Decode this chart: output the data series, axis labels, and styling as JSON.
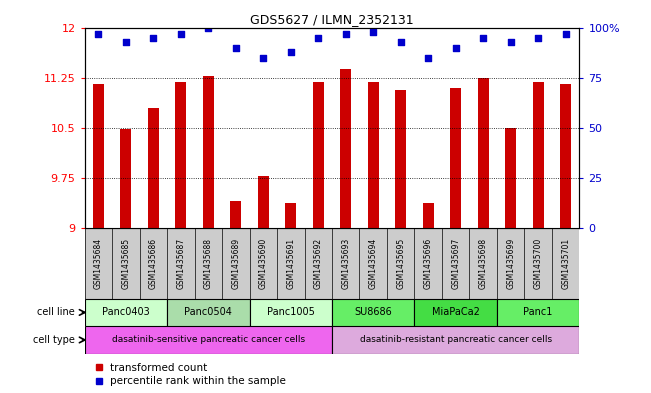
{
  "title": "GDS5627 / ILMN_2352131",
  "samples": [
    "GSM1435684",
    "GSM1435685",
    "GSM1435686",
    "GSM1435687",
    "GSM1435688",
    "GSM1435689",
    "GSM1435690",
    "GSM1435691",
    "GSM1435692",
    "GSM1435693",
    "GSM1435694",
    "GSM1435695",
    "GSM1435696",
    "GSM1435697",
    "GSM1435698",
    "GSM1435699",
    "GSM1435700",
    "GSM1435701"
  ],
  "bar_values": [
    11.15,
    10.48,
    10.8,
    11.18,
    11.28,
    9.4,
    9.78,
    9.38,
    11.18,
    11.38,
    11.18,
    11.06,
    9.38,
    11.1,
    11.25,
    10.5,
    11.18,
    11.15
  ],
  "percentile_values": [
    97,
    93,
    95,
    97,
    100,
    90,
    85,
    88,
    95,
    97,
    98,
    93,
    85,
    90,
    95,
    93,
    95,
    97
  ],
  "y_min": 9,
  "y_max": 12,
  "y_ticks": [
    9,
    9.75,
    10.5,
    11.25,
    12
  ],
  "y_right_ticks": [
    0,
    25,
    50,
    75,
    100
  ],
  "bar_color": "#cc0000",
  "dot_color": "#0000cc",
  "bar_width": 0.4,
  "cell_lines": [
    {
      "name": "Panc0403",
      "start": 0,
      "end": 2,
      "color": "#ccffcc"
    },
    {
      "name": "Panc0504",
      "start": 3,
      "end": 5,
      "color": "#aaddaa"
    },
    {
      "name": "Panc1005",
      "start": 6,
      "end": 8,
      "color": "#ccffcc"
    },
    {
      "name": "SU8686",
      "start": 9,
      "end": 11,
      "color": "#66ee66"
    },
    {
      "name": "MiaPaCa2",
      "start": 12,
      "end": 14,
      "color": "#44dd44"
    },
    {
      "name": "Panc1",
      "start": 15,
      "end": 17,
      "color": "#66ee66"
    }
  ],
  "cell_types": [
    {
      "name": "dasatinib-sensitive pancreatic cancer cells",
      "start": 0,
      "end": 8,
      "color": "#ee66ee"
    },
    {
      "name": "dasatinib-resistant pancreatic cancer cells",
      "start": 9,
      "end": 17,
      "color": "#ddaadd"
    }
  ],
  "sample_bg_color": "#cccccc",
  "legend_bar_label": "transformed count",
  "legend_dot_label": "percentile rank within the sample",
  "cell_line_label": "cell line",
  "cell_type_label": "cell type",
  "fig_width": 6.51,
  "fig_height": 3.93,
  "fig_dpi": 100
}
